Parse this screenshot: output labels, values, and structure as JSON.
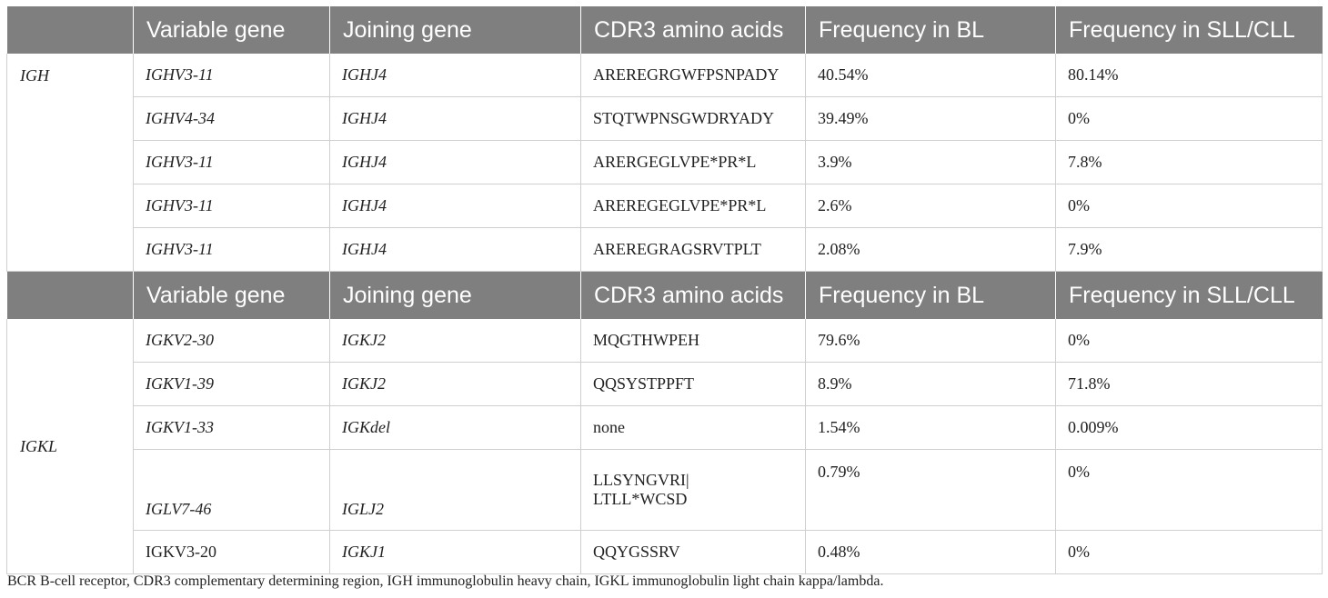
{
  "header": {
    "col0": "",
    "col1": "Variable gene",
    "col2": "Joining gene",
    "col3": "CDR3 amino acids",
    "col4": "Frequency in BL",
    "col5": "Frequency in SLL/CLL"
  },
  "groups": [
    {
      "label": "IGH",
      "rows": [
        {
          "variable": "IGHV3-11",
          "joining": "IGHJ4",
          "cdr3": "ARERegrgwfpsnpady",
          "bl": "40.54%",
          "sll": "80.14%"
        },
        {
          "variable": "IGHV4-34",
          "joining": "IGHJ4",
          "cdr3": "STQTWPNSGWDRYADY",
          "bl": "39.49%",
          "sll": "0%"
        },
        {
          "variable": "IGHV3-11",
          "joining": "IGHJ4",
          "cdr3": "ARERGEGLVPE*PR*L",
          "bl": "3.9%",
          "sll": "7.8%"
        },
        {
          "variable": "IGHV3-11",
          "joining": "IGHJ4",
          "cdr3": "AREREGEGLVPE*PR*L",
          "bl": "2.6%",
          "sll": "0%"
        },
        {
          "variable": "IGHV3-11",
          "joining": "IGHJ4",
          "cdr3": "AREREGRAGSRVTPLT",
          "bl": "2.08%",
          "sll": "7.9%"
        }
      ]
    },
    {
      "label": "IGKL",
      "rows": [
        {
          "variable": "IGKV2-30",
          "joining": "IGKJ2",
          "cdr3": "MQGTHWPEH",
          "bl": "79.6%",
          "sll": "0%"
        },
        {
          "variable": "IGKV1-39",
          "joining": "IGKJ2",
          "cdr3": "QQSYSTPPFT",
          "bl": "8.9%",
          "sll": "71.8%"
        },
        {
          "variable": "IGKV1-33",
          "joining": "IGKdel",
          "cdr3": "none",
          "bl": "1.54%",
          "sll": "0.009%"
        },
        {
          "variable": "IGLV7-46",
          "joining": "IGLJ2",
          "cdr3_line1": "LLSYNGVRI|",
          "cdr3_line2": "LTLL*WCSD",
          "bl": "0.79%",
          "sll": "0%"
        },
        {
          "variable": "IGKV3-20",
          "joining": "IGKJ1",
          "cdr3": "QQYGSSRV",
          "bl": "0.48%",
          "sll": "0%"
        }
      ]
    }
  ],
  "caption": "BCR B-cell receptor, CDR3 complementary determining region, IGH immunoglobulin heavy chain, IGKL immunoglobulin light chain kappa/lambda."
}
